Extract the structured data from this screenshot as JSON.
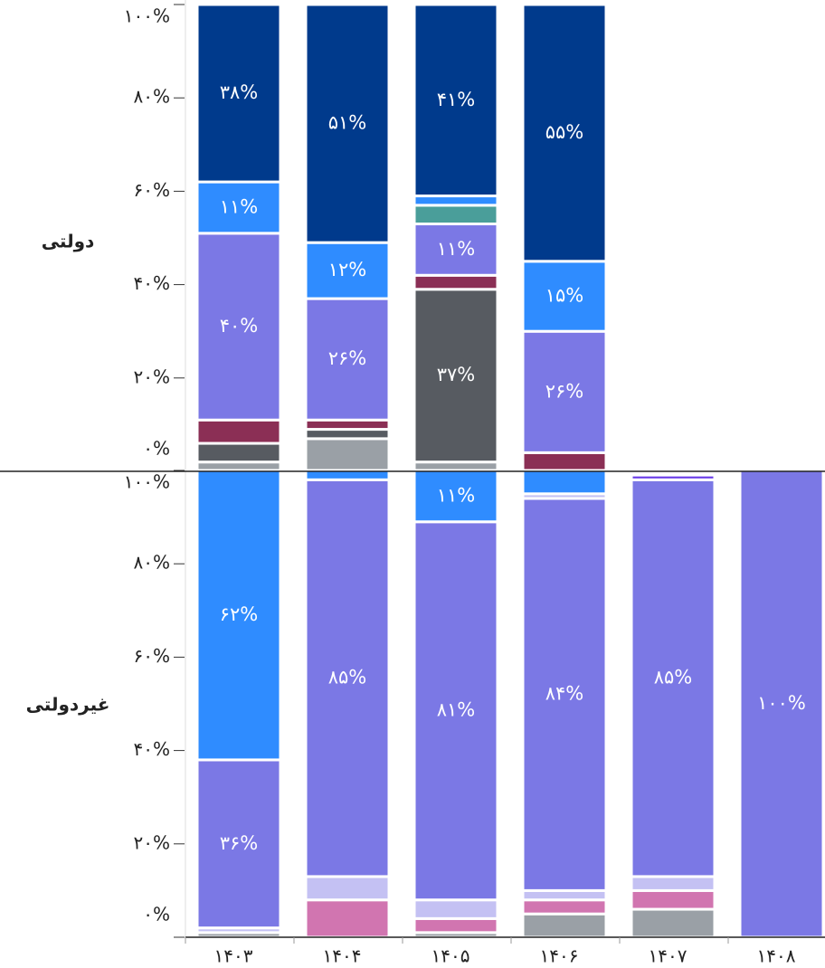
{
  "chart_data": {
    "type": "stacked_bar",
    "categories": [
      "۱۴۰۳",
      "۱۴۰۴",
      "۱۴۰۵",
      "۱۴۰۶",
      "۱۴۰۷",
      "۱۴۰۸"
    ],
    "ylim": [
      0,
      100
    ],
    "yticks": [
      {
        "value": 0,
        "label": "۰%"
      },
      {
        "value": 20,
        "label": "۲۰%"
      },
      {
        "value": 40,
        "label": "۴۰%"
      },
      {
        "value": 60,
        "label": "۶۰%"
      },
      {
        "value": 80,
        "label": "۸۰%"
      },
      {
        "value": 100,
        "label": "۱۰۰%"
      }
    ],
    "panels": [
      {
        "label": "دولتی",
        "series": [
          {
            "color": "#9aa0a6",
            "values": [
              2,
              7,
              2,
              null,
              null,
              null
            ]
          },
          {
            "color": "#575b61",
            "values": [
              4,
              2,
              37,
              null,
              null,
              null
            ],
            "value_labels": [
              null,
              null,
              "۳۷%",
              null,
              null,
              null
            ]
          },
          {
            "color": "#8b2f55",
            "values": [
              5,
              2,
              3,
              4,
              null,
              null
            ]
          },
          {
            "color": "#7b78e5",
            "values": [
              40,
              26,
              11,
              26,
              null,
              null
            ],
            "value_labels": [
              "۴۰%",
              "۲۶%",
              "۱۱%",
              "۲۶%",
              null,
              null
            ]
          },
          {
            "color": "#4a9e9a",
            "values": [
              null,
              null,
              4,
              null,
              null,
              null
            ]
          },
          {
            "color": "#2f8cff",
            "values": [
              11,
              12,
              2,
              15,
              null,
              null
            ],
            "value_labels": [
              "۱۱%",
              "۱۲%",
              null,
              "۱۵%",
              null,
              null
            ]
          },
          {
            "color": "#003a8c",
            "values": [
              38,
              51,
              41,
              55,
              null,
              null
            ],
            "value_labels": [
              "۳۸%",
              "۵۱%",
              "۴۱%",
              "۵۵%",
              null,
              null
            ]
          }
        ]
      },
      {
        "label": "غیردولتی",
        "series": [
          {
            "color": "#9aa0a6",
            "values": [
              1,
              null,
              1,
              5,
              6,
              null
            ]
          },
          {
            "color": "#d175b0",
            "values": [
              null,
              8,
              3,
              3,
              4,
              null
            ]
          },
          {
            "color": "#c4c1f3",
            "values": [
              1,
              5,
              4,
              2,
              3,
              null
            ]
          },
          {
            "color": "#7b78e5",
            "values": [
              36,
              85,
              81,
              84,
              85,
              100
            ],
            "value_labels": [
              "۳۶%",
              "۸۵%",
              "۸۱%",
              "۸۴%",
              "۸۵%",
              "۱۰۰%"
            ]
          },
          {
            "color": "#c4c1f3",
            "values": [
              null,
              null,
              null,
              1,
              null,
              null
            ]
          },
          {
            "color": "#2f8cff",
            "values": [
              62,
              2,
              11,
              5,
              null,
              null
            ],
            "value_labels": [
              "۶۲%",
              null,
              "۱۱%",
              null,
              null,
              null
            ]
          },
          {
            "color": "#6a3de8",
            "values": [
              null,
              null,
              null,
              null,
              1,
              null
            ]
          }
        ]
      }
    ]
  }
}
